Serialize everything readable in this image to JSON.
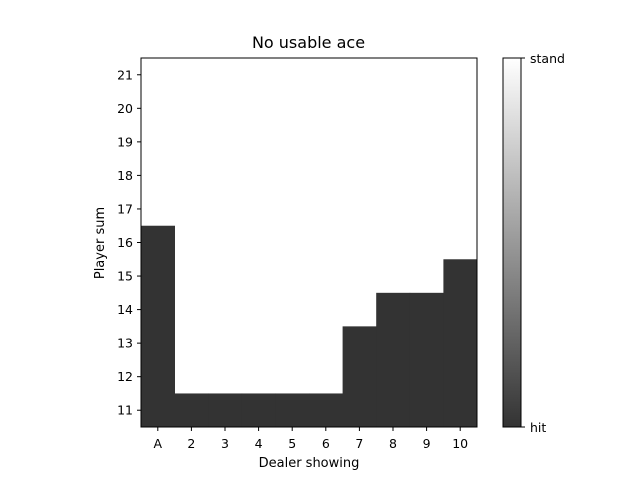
{
  "chart_data": {
    "type": "heatmap",
    "title": "No usable ace",
    "xlabel": "Dealer showing",
    "ylabel": "Player sum",
    "x_categories": [
      "A",
      "2",
      "3",
      "4",
      "5",
      "6",
      "7",
      "8",
      "9",
      "10"
    ],
    "y_categories": [
      11,
      12,
      13,
      14,
      15,
      16,
      17,
      18,
      19,
      20,
      21
    ],
    "policy_columns": [
      {
        "dealer": "A",
        "hit_up_to_player_sum": 16
      },
      {
        "dealer": "2",
        "hit_up_to_player_sum": 11
      },
      {
        "dealer": "3",
        "hit_up_to_player_sum": 11
      },
      {
        "dealer": "4",
        "hit_up_to_player_sum": 11
      },
      {
        "dealer": "5",
        "hit_up_to_player_sum": 11
      },
      {
        "dealer": "6",
        "hit_up_to_player_sum": 11
      },
      {
        "dealer": "7",
        "hit_up_to_player_sum": 13
      },
      {
        "dealer": "8",
        "hit_up_to_player_sum": 14
      },
      {
        "dealer": "9",
        "hit_up_to_player_sum": 14
      },
      {
        "dealer": "10",
        "hit_up_to_player_sum": 15
      }
    ],
    "colorbar": {
      "low_label": "hit",
      "high_label": "stand",
      "low_color": "#333333",
      "high_color": "#ffffff"
    },
    "grid": false
  }
}
